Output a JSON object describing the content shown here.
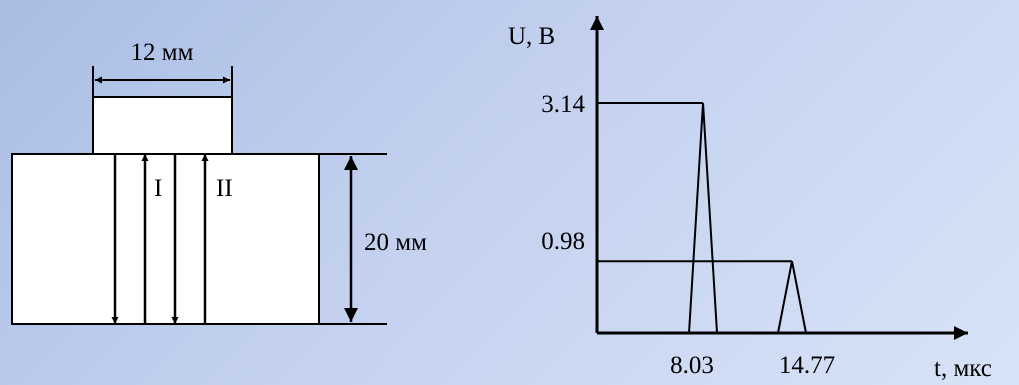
{
  "schematic": {
    "width_label": "12 мм",
    "height_label": "20 мм",
    "path_labels": [
      "I",
      "II"
    ]
  },
  "chart_data": {
    "type": "line",
    "title": "",
    "ylabel": "U, В",
    "xlabel": "t, мкс",
    "y_ticks": [
      "3.14",
      "0.98"
    ],
    "x_ticks": [
      "8.03",
      "14.77"
    ],
    "series": [
      {
        "values": [
          {
            "x": 0,
            "y": 3.14
          },
          {
            "x": 8.03,
            "y": 3.14
          },
          {
            "x": 8.03,
            "y": 0
          }
        ]
      },
      {
        "values": [
          {
            "x": 0,
            "y": 0.98
          },
          {
            "x": 14.77,
            "y": 0.98
          },
          {
            "x": 14.77,
            "y": 0
          }
        ]
      }
    ]
  }
}
